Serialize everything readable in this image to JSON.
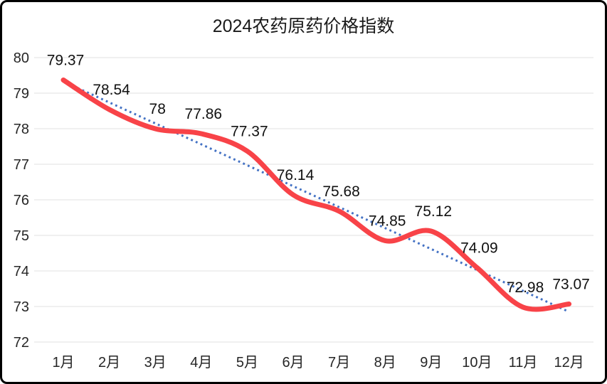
{
  "title": "2024农药原药价格指数",
  "chart_data": {
    "type": "line",
    "title": "2024农药原药价格指数",
    "categories": [
      "1月",
      "2月",
      "3月",
      "4月",
      "5月",
      "6月",
      "7月",
      "8月",
      "9月",
      "10月",
      "11月",
      "12月"
    ],
    "series": [
      {
        "name": "price-index",
        "style": "smooth-line",
        "values": [
          79.37,
          78.54,
          78,
          77.86,
          77.37,
          76.14,
          75.68,
          74.85,
          75.12,
          74.09,
          72.98,
          73.07
        ],
        "data_labels": [
          "79.37",
          "78.54",
          "78",
          "77.86",
          "77.37",
          "76.14",
          "75.68",
          "74.85",
          "75.12",
          "74.09",
          "72.98",
          "73.07"
        ]
      },
      {
        "name": "linear-trendline",
        "style": "dotted-line",
        "derived": "linear-regression-of-price-index"
      }
    ],
    "xlabel": "",
    "ylabel": "",
    "ylim": [
      72,
      80
    ],
    "yticks": [
      "80",
      "79",
      "78",
      "77",
      "76",
      "75",
      "74",
      "73",
      "72"
    ],
    "grid": true,
    "legend": "none",
    "colors": {
      "line": "#f84348",
      "trendline": "#4472c4",
      "gridline": "#ebebeb",
      "axis_text": "#262626",
      "label_text": "#111111",
      "background": "#ffffff",
      "border": "#000000"
    }
  }
}
